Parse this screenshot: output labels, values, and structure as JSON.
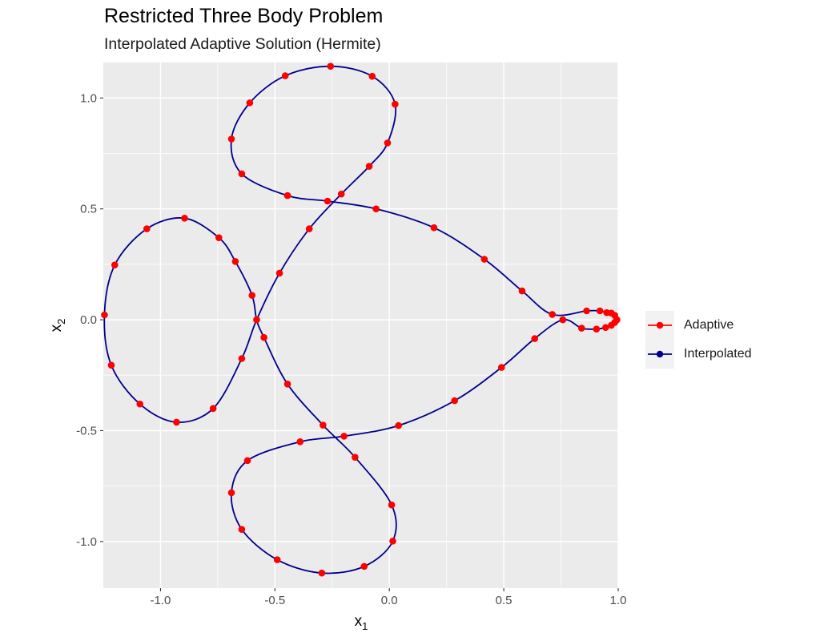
{
  "chart_data": {
    "type": "line",
    "title": "Restricted Three Body Problem",
    "subtitle": "Interpolated Adaptive Solution (Hermite)",
    "xlabel": "x",
    "xlabel_sub": "1",
    "ylabel": "x",
    "ylabel_sub": "2",
    "xlim": [
      -1.25,
      1.0
    ],
    "ylim": [
      -1.21,
      1.16
    ],
    "x_ticks": [
      -1.0,
      -0.5,
      0.0,
      0.5,
      1.0
    ],
    "x_tick_labels": [
      "-1.0",
      "-0.5",
      "0.0",
      "0.5",
      "1.0"
    ],
    "y_ticks": [
      -1.0,
      -0.5,
      0.0,
      0.5,
      1.0
    ],
    "y_tick_labels": [
      "-1.0",
      "-0.5",
      "0.0",
      "0.5",
      "1.0"
    ],
    "grid": true,
    "legend_position": "right",
    "series": [
      {
        "name": "Adaptive",
        "color": "#ff0000",
        "marker": "point",
        "points": [
          [
            0.994,
            0.0
          ],
          [
            0.985,
            0.02
          ],
          [
            0.97,
            0.03
          ],
          [
            0.95,
            0.032
          ],
          [
            0.92,
            0.04
          ],
          [
            0.862,
            0.04
          ],
          [
            0.712,
            0.024
          ],
          [
            0.58,
            0.13
          ],
          [
            0.415,
            0.273
          ],
          [
            0.195,
            0.415
          ],
          [
            -0.058,
            0.5
          ],
          [
            -0.27,
            0.535
          ],
          [
            -0.445,
            0.56
          ],
          [
            -0.645,
            0.658
          ],
          [
            -0.69,
            0.815
          ],
          [
            -0.61,
            0.978
          ],
          [
            -0.455,
            1.1
          ],
          [
            -0.257,
            1.143
          ],
          [
            -0.075,
            1.098
          ],
          [
            0.025,
            0.972
          ],
          [
            -0.008,
            0.797
          ],
          [
            -0.088,
            0.692
          ],
          [
            -0.21,
            0.567
          ],
          [
            -0.35,
            0.41
          ],
          [
            -0.48,
            0.21
          ],
          [
            -0.6,
            0.11
          ],
          [
            -0.58,
            0.0
          ],
          [
            -0.548,
            -0.08
          ],
          [
            -0.445,
            -0.29
          ],
          [
            -0.29,
            -0.475
          ],
          [
            -0.15,
            -0.62
          ],
          [
            0.01,
            -0.835
          ],
          [
            0.015,
            -0.998
          ],
          [
            -0.11,
            -1.112
          ],
          [
            -0.295,
            -1.142
          ],
          [
            -0.49,
            -1.082
          ],
          [
            -0.645,
            -0.945
          ],
          [
            -0.69,
            -0.78
          ],
          [
            -0.62,
            -0.635
          ],
          [
            -0.39,
            -0.55
          ],
          [
            -0.198,
            -0.525
          ],
          [
            0.04,
            -0.477
          ],
          [
            0.285,
            -0.365
          ],
          [
            0.49,
            -0.215
          ],
          [
            0.635,
            -0.085
          ],
          [
            0.758,
            0.0
          ],
          [
            0.84,
            -0.038
          ],
          [
            0.905,
            -0.042
          ],
          [
            0.945,
            -0.035
          ],
          [
            0.97,
            -0.025
          ],
          [
            0.985,
            -0.012
          ],
          [
            0.994,
            0.0
          ],
          [
            -0.673,
            0.263
          ],
          [
            -0.745,
            0.37
          ],
          [
            -0.895,
            0.458
          ],
          [
            -1.06,
            0.41
          ],
          [
            -1.2,
            0.247
          ],
          [
            -1.245,
            0.022
          ],
          [
            -1.215,
            -0.205
          ],
          [
            -1.09,
            -0.38
          ],
          [
            -0.93,
            -0.462
          ],
          [
            -0.77,
            -0.4
          ],
          [
            -0.645,
            -0.175
          ]
        ]
      },
      {
        "name": "Interpolated",
        "color": "#00008b",
        "marker": "line",
        "points": [
          [
            0.994,
            0.0
          ],
          [
            0.985,
            0.02
          ],
          [
            0.97,
            0.03
          ],
          [
            0.95,
            0.032
          ],
          [
            0.92,
            0.04
          ],
          [
            0.862,
            0.04
          ],
          [
            0.712,
            0.024
          ],
          [
            0.58,
            0.13
          ],
          [
            0.415,
            0.273
          ],
          [
            0.195,
            0.415
          ],
          [
            -0.058,
            0.5
          ],
          [
            -0.27,
            0.535
          ],
          [
            -0.445,
            0.56
          ],
          [
            -0.645,
            0.658
          ],
          [
            -0.69,
            0.815
          ],
          [
            -0.61,
            0.978
          ],
          [
            -0.455,
            1.1
          ],
          [
            -0.257,
            1.143
          ],
          [
            -0.075,
            1.098
          ],
          [
            0.025,
            0.972
          ],
          [
            -0.008,
            0.797
          ],
          [
            -0.088,
            0.692
          ],
          [
            -0.21,
            0.567
          ],
          [
            -0.35,
            0.41
          ],
          [
            -0.48,
            0.21
          ],
          [
            -0.58,
            0.0
          ],
          [
            -0.645,
            -0.175
          ],
          [
            -0.77,
            -0.4
          ],
          [
            -0.93,
            -0.462
          ],
          [
            -1.09,
            -0.38
          ],
          [
            -1.215,
            -0.205
          ],
          [
            -1.245,
            0.022
          ],
          [
            -1.2,
            0.247
          ],
          [
            -1.06,
            0.41
          ],
          [
            -0.895,
            0.458
          ],
          [
            -0.745,
            0.37
          ],
          [
            -0.673,
            0.263
          ],
          [
            -0.6,
            0.11
          ],
          [
            -0.58,
            0.0
          ],
          [
            -0.548,
            -0.08
          ],
          [
            -0.445,
            -0.29
          ],
          [
            -0.29,
            -0.475
          ],
          [
            -0.15,
            -0.62
          ],
          [
            0.01,
            -0.835
          ],
          [
            0.015,
            -0.998
          ],
          [
            -0.11,
            -1.112
          ],
          [
            -0.295,
            -1.142
          ],
          [
            -0.49,
            -1.082
          ],
          [
            -0.645,
            -0.945
          ],
          [
            -0.69,
            -0.78
          ],
          [
            -0.62,
            -0.635
          ],
          [
            -0.39,
            -0.55
          ],
          [
            -0.198,
            -0.525
          ],
          [
            0.04,
            -0.477
          ],
          [
            0.285,
            -0.365
          ],
          [
            0.49,
            -0.215
          ],
          [
            0.635,
            -0.085
          ],
          [
            0.758,
            0.0
          ],
          [
            0.84,
            -0.038
          ],
          [
            0.905,
            -0.042
          ],
          [
            0.945,
            -0.035
          ],
          [
            0.97,
            -0.025
          ],
          [
            0.985,
            -0.012
          ],
          [
            0.994,
            0.0
          ]
        ]
      }
    ]
  }
}
